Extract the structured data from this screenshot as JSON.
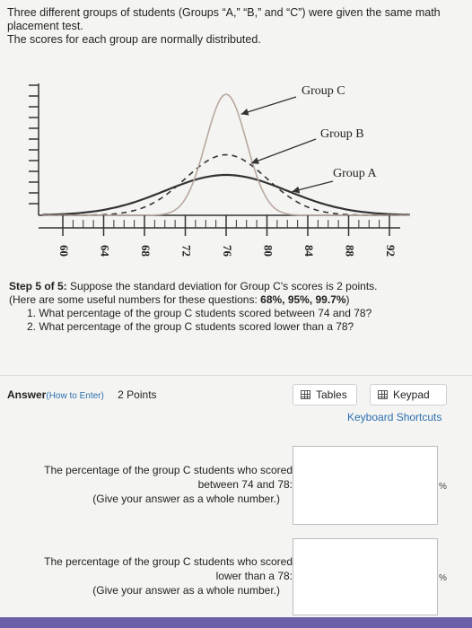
{
  "intro": {
    "line1": "Three different groups of students (Groups “A,” “B,” and “C”) were given the same math placement test.",
    "line2": "The scores for each group are normally distributed."
  },
  "chart_data": {
    "type": "line",
    "x_ticks": [
      "60",
      "64",
      "68",
      "72",
      "76",
      "80",
      "84",
      "88",
      "92"
    ],
    "xlim": [
      58,
      94
    ],
    "series": [
      {
        "name": "Group A",
        "mean": 76,
        "sd": 6,
        "color": "#333333",
        "style": "solid"
      },
      {
        "name": "Group B",
        "mean": 76,
        "sd": 4,
        "color": "#333333",
        "style": "dashed"
      },
      {
        "name": "Group C",
        "mean": 76,
        "sd": 2,
        "color": "#b9a8a0",
        "style": "solid"
      }
    ]
  },
  "step": {
    "title": "Step 5 of 5:",
    "text": " Suppose the standard deviation for Group C's scores is 2 points.",
    "hint_pre": "(Here are some useful numbers for these questions: ",
    "hint_numbers": "68%, 95%, 99.7%",
    "hint_post": ")",
    "q1": "1. What percentage of the group C students scored between 74 and 78?",
    "q2": "2. What percentage of the group C students scored lower than a 78?"
  },
  "answer": {
    "label": "Answer",
    "how_to_enter": "(How to Enter)",
    "points": "2 Points",
    "tables_label": "Tables",
    "keypad_label": "Keypad",
    "shortcuts_label": "Keyboard Shortcuts"
  },
  "question1": {
    "line1": "The percentage of the group C students who scored",
    "line2": "between 74 and 78:",
    "line3": "(Give your answer as a whole number.)",
    "value": "",
    "unit": "%"
  },
  "question2": {
    "line1": "The percentage of the group C students who scored",
    "line2": "lower than a 78:",
    "line3": "(Give your answer as a whole number.)",
    "value": "",
    "unit": "%"
  }
}
